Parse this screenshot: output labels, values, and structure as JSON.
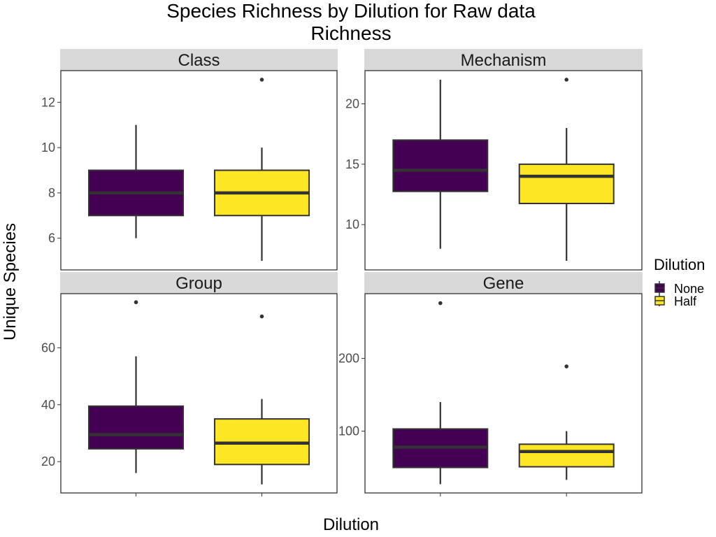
{
  "chart_data": {
    "type": "box",
    "title_lines": [
      "Species Richness by Dilution for Raw data",
      "Richness"
    ],
    "xlabel": "Dilution",
    "ylabel": "Unique Species",
    "legend": {
      "title": "Dilution",
      "position": "right",
      "entries": [
        {
          "label": "None",
          "color": "#440154"
        },
        {
          "label": "Half",
          "color": "#FDE725"
        }
      ]
    },
    "facets": [
      {
        "name": "Class",
        "ylim": [
          4.6,
          13.4
        ],
        "yticks": [
          6,
          8,
          10,
          12
        ],
        "boxes": [
          {
            "group": "None",
            "lower_whisker": 6,
            "q1": 7,
            "median": 8,
            "q3": 9,
            "upper_whisker": 11,
            "outliers": []
          },
          {
            "group": "Half",
            "lower_whisker": 5,
            "q1": 7,
            "median": 8,
            "q3": 9,
            "upper_whisker": 10,
            "outliers": [
              13
            ]
          }
        ]
      },
      {
        "name": "Mechanism",
        "ylim": [
          6.25,
          22.75
        ],
        "yticks": [
          10,
          15,
          20
        ],
        "boxes": [
          {
            "group": "None",
            "lower_whisker": 8,
            "q1": 12.75,
            "median": 14.5,
            "q3": 17,
            "upper_whisker": 22,
            "outliers": []
          },
          {
            "group": "Half",
            "lower_whisker": 7,
            "q1": 11.75,
            "median": 14,
            "q3": 15,
            "upper_whisker": 18,
            "outliers": [
              22
            ]
          }
        ]
      },
      {
        "name": "Group",
        "ylim": [
          9,
          79
        ],
        "yticks": [
          20,
          40,
          60
        ],
        "boxes": [
          {
            "group": "None",
            "lower_whisker": 16,
            "q1": 24.5,
            "median": 29.5,
            "q3": 39.5,
            "upper_whisker": 57,
            "outliers": [
              76
            ]
          },
          {
            "group": "Half",
            "lower_whisker": 12,
            "q1": 19,
            "median": 26.5,
            "q3": 35,
            "upper_whisker": 42,
            "outliers": [
              71
            ]
          }
        ]
      },
      {
        "name": "Gene",
        "ylim": [
          15,
          289
        ],
        "yticks": [
          100,
          200
        ],
        "boxes": [
          {
            "group": "None",
            "lower_whisker": 27,
            "q1": 50,
            "median": 78,
            "q3": 103,
            "upper_whisker": 140,
            "outliers": [
              276
            ]
          },
          {
            "group": "Half",
            "lower_whisker": 33,
            "q1": 51,
            "median": 72,
            "q3": 82,
            "upper_whisker": 100,
            "outliers": [
              189
            ]
          }
        ]
      }
    ],
    "x_categories": [
      "None",
      "Half"
    ],
    "x_tick_labels_shown": false
  }
}
